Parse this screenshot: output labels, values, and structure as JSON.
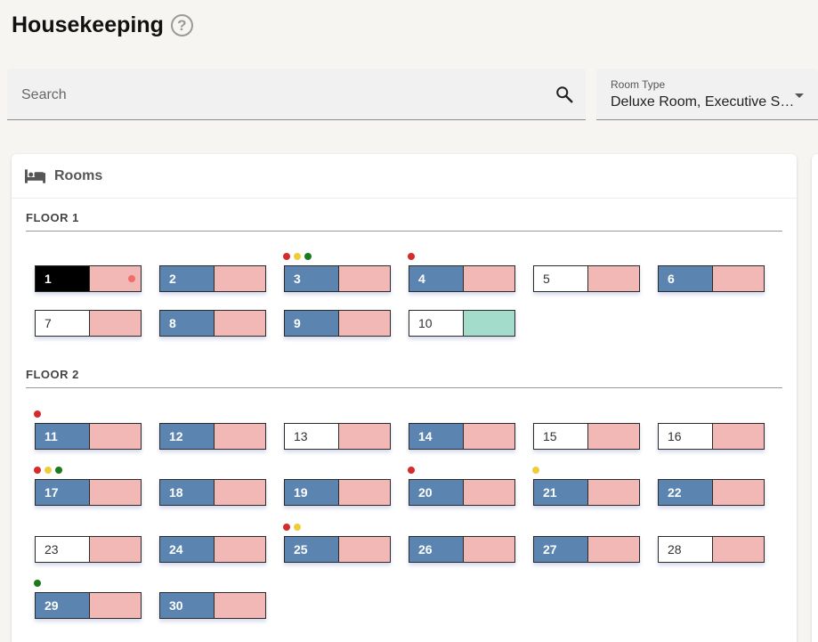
{
  "header": {
    "title": "Housekeeping",
    "help_glyph": "?"
  },
  "search": {
    "placeholder": "Search",
    "value": ""
  },
  "room_type": {
    "label": "Room Type",
    "value": "Deluxe Room, Executive Suite"
  },
  "rooms_card": {
    "title": "Rooms",
    "icon": "bed-icon"
  },
  "colors": {
    "occupied": "#5b85b0",
    "vacant": "#ffffff",
    "selected": "#000000",
    "dirty": "#f2b8b6",
    "clean": "#a4dccc",
    "dot_red": "#d42c2c",
    "dot_yellow": "#f0cc3c",
    "dot_green": "#1b7a1b",
    "dot_pink": "#f26c6c"
  },
  "floors": [
    {
      "name": "FLOOR 1",
      "rooms": [
        {
          "number": "1",
          "state": "selected",
          "status": "dirty",
          "dots": [],
          "inner_dot": "dot_pink"
        },
        {
          "number": "2",
          "state": "occupied",
          "status": "dirty",
          "dots": []
        },
        {
          "number": "3",
          "state": "occupied",
          "status": "dirty",
          "dots": [
            "dot_red",
            "dot_yellow",
            "dot_green"
          ]
        },
        {
          "number": "4",
          "state": "occupied",
          "status": "dirty",
          "dots": [
            "dot_red"
          ]
        },
        {
          "number": "5",
          "state": "vacant",
          "status": "dirty",
          "dots": []
        },
        {
          "number": "6",
          "state": "occupied",
          "status": "dirty",
          "dots": []
        },
        {
          "number": "7",
          "state": "vacant",
          "status": "dirty",
          "dots": []
        },
        {
          "number": "8",
          "state": "occupied",
          "status": "dirty",
          "dots": []
        },
        {
          "number": "9",
          "state": "occupied",
          "status": "dirty",
          "dots": []
        },
        {
          "number": "10",
          "state": "vacant",
          "status": "clean",
          "dots": []
        }
      ]
    },
    {
      "name": "FLOOR 2",
      "rooms": [
        {
          "number": "11",
          "state": "occupied",
          "status": "dirty",
          "dots": [
            "dot_red"
          ]
        },
        {
          "number": "12",
          "state": "occupied",
          "status": "dirty",
          "dots": []
        },
        {
          "number": "13",
          "state": "vacant",
          "status": "dirty",
          "dots": []
        },
        {
          "number": "14",
          "state": "occupied",
          "status": "dirty",
          "dots": []
        },
        {
          "number": "15",
          "state": "vacant",
          "status": "dirty",
          "dots": []
        },
        {
          "number": "16",
          "state": "vacant",
          "status": "dirty",
          "dots": []
        },
        {
          "number": "17",
          "state": "occupied",
          "status": "dirty",
          "dots": [
            "dot_red",
            "dot_yellow",
            "dot_green"
          ]
        },
        {
          "number": "18",
          "state": "occupied",
          "status": "dirty",
          "dots": []
        },
        {
          "number": "19",
          "state": "occupied",
          "status": "dirty",
          "dots": []
        },
        {
          "number": "20",
          "state": "occupied",
          "status": "dirty",
          "dots": [
            "dot_red"
          ]
        },
        {
          "number": "21",
          "state": "occupied",
          "status": "dirty",
          "dots": [
            "dot_yellow"
          ]
        },
        {
          "number": "22",
          "state": "occupied",
          "status": "dirty",
          "dots": []
        },
        {
          "number": "23",
          "state": "vacant",
          "status": "dirty",
          "dots": []
        },
        {
          "number": "24",
          "state": "occupied",
          "status": "dirty",
          "dots": []
        },
        {
          "number": "25",
          "state": "occupied",
          "status": "dirty",
          "dots": [
            "dot_red",
            "dot_yellow"
          ]
        },
        {
          "number": "26",
          "state": "occupied",
          "status": "dirty",
          "dots": []
        },
        {
          "number": "27",
          "state": "occupied",
          "status": "dirty",
          "dots": []
        },
        {
          "number": "28",
          "state": "vacant",
          "status": "dirty",
          "dots": []
        },
        {
          "number": "29",
          "state": "occupied",
          "status": "dirty",
          "dots": [
            "dot_green"
          ]
        },
        {
          "number": "30",
          "state": "occupied",
          "status": "dirty",
          "dots": []
        }
      ]
    }
  ]
}
